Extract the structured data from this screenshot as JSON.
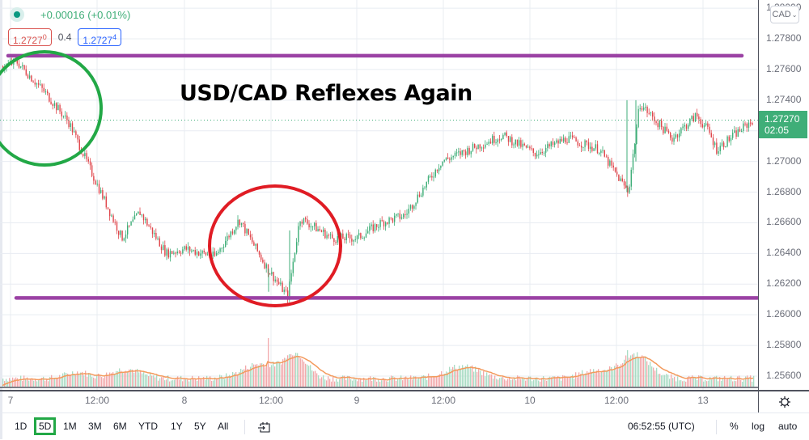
{
  "chart": {
    "symbol": "USD/CAD",
    "change": "+0.00016 (+0.01%)",
    "status_dot_color": "#089981",
    "sell_price_main": "1.2727",
    "sell_price_sup": "0",
    "spread": "0.4",
    "buy_price_main": "1.2727",
    "buy_price_sup": "4",
    "annotation_title": "USD/CAD Reflexes Again",
    "current_price": "1.27270",
    "countdown": "02:05",
    "colors": {
      "up": "#3fae78",
      "down": "#e0474c",
      "annotation_line": "#9b42a4",
      "circle_green": "#22a846",
      "circle_red": "#e01c24",
      "volume_ma": "#f39a5c"
    }
  },
  "price_axis": {
    "currency_button": "CAD",
    "ticks": [
      "1.28000",
      "1.27800",
      "1.27600",
      "1.27400",
      "1.27200",
      "1.27000",
      "1.26800",
      "1.26600",
      "1.26400",
      "1.26200",
      "1.26000",
      "1.25800",
      "1.25600"
    ]
  },
  "time_axis": {
    "ticks": [
      "7",
      "12:00",
      "8",
      "12:00",
      "9",
      "12:00",
      "10",
      "12:00",
      "13"
    ]
  },
  "bottom_toolbar": {
    "timeframes": [
      "1D",
      "5D",
      "1M",
      "3M",
      "6M",
      "YTD",
      "1Y",
      "5Y",
      "All"
    ],
    "active_timeframe": "5D",
    "clock": "06:52:55 (UTC)",
    "percent": "%",
    "log": "log",
    "auto": "auto"
  },
  "chart_data": {
    "type": "candlestick",
    "title": "USD/CAD Reflexes Again",
    "x_ticks": [
      "7",
      "12:00",
      "8",
      "12:00",
      "9",
      "12:00",
      "10",
      "12:00",
      "13"
    ],
    "y_ticks": [
      1.256,
      1.258,
      1.26,
      1.262,
      1.264,
      1.266,
      1.268,
      1.27,
      1.272,
      1.274,
      1.276,
      1.278,
      1.28
    ],
    "ylim": [
      1.255,
      1.2805
    ],
    "last_price": 1.2727,
    "approx_close_path": [
      {
        "x": "7 open",
        "price": 1.2762
      },
      {
        "x": "7 early",
        "price": 1.2765
      },
      {
        "x": "7 ~06:00",
        "price": 1.2745
      },
      {
        "x": "7 ~09:00",
        "price": 1.2725
      },
      {
        "x": "7 ~12:00",
        "price": 1.269
      },
      {
        "x": "7 ~15:00",
        "price": 1.265
      },
      {
        "x": "7 ~16:00",
        "price": 1.2667
      },
      {
        "x": "7 ~20:00",
        "price": 1.264
      },
      {
        "x": "8 ~00:00",
        "price": 1.2643
      },
      {
        "x": "8 ~06:00",
        "price": 1.2638
      },
      {
        "x": "8 ~10:00",
        "price": 1.2662
      },
      {
        "x": "8 ~13:00",
        "price": 1.263
      },
      {
        "x": "8 ~15:00",
        "price": 1.2612
      },
      {
        "x": "8 ~16:00",
        "price": 1.2663
      },
      {
        "x": "8 ~20:00",
        "price": 1.265
      },
      {
        "x": "9 ~00:00",
        "price": 1.265
      },
      {
        "x": "9 ~06:00",
        "price": 1.266
      },
      {
        "x": "9 ~10:00",
        "price": 1.2665
      },
      {
        "x": "9 ~14:00",
        "price": 1.27
      },
      {
        "x": "9 ~16:00",
        "price": 1.2717
      },
      {
        "x": "9 ~20:00",
        "price": 1.2707
      },
      {
        "x": "10 ~00:00",
        "price": 1.2705
      },
      {
        "x": "10 ~06:00",
        "price": 1.2715
      },
      {
        "x": "10 ~10:00",
        "price": 1.2708
      },
      {
        "x": "10 ~12:00",
        "price": 1.268
      },
      {
        "x": "10 ~13:00",
        "price": 1.2738
      },
      {
        "x": "10 ~18:00",
        "price": 1.2715
      },
      {
        "x": "10 ~21:00",
        "price": 1.273
      },
      {
        "x": "13 ~00:00",
        "price": 1.272
      },
      {
        "x": "13 ~03:00",
        "price": 1.2708
      },
      {
        "x": "13 ~06:52",
        "price": 1.2727
      }
    ],
    "annotations": [
      {
        "type": "horizontal_line",
        "price": 1.2769,
        "color": "#9b42a4",
        "label": "resistance"
      },
      {
        "type": "horizontal_line",
        "price": 1.2611,
        "color": "#9b42a4",
        "label": "support"
      },
      {
        "type": "ellipse",
        "color": "#22a846",
        "region": "day 7 early selloff"
      },
      {
        "type": "ellipse",
        "color": "#e01c24",
        "region": "day 8 support test"
      }
    ],
    "volume": {
      "has_ma_line": true,
      "spikes_at": [
        "8 ~12:00",
        "10 ~12:00"
      ]
    }
  }
}
